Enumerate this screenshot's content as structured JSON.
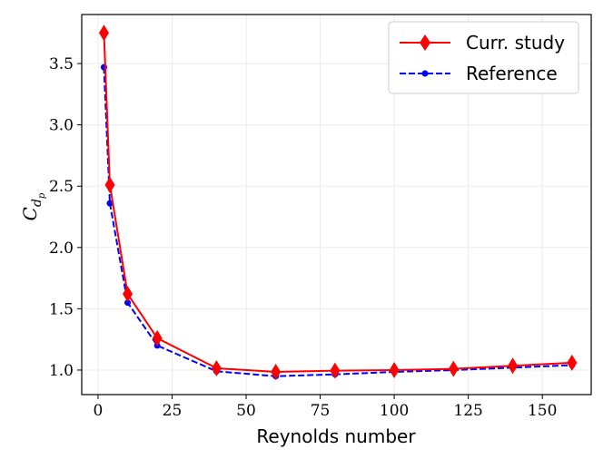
{
  "chart_data": {
    "type": "line",
    "title": "",
    "xlabel": "Reynolds number",
    "ylabel": "C_{d_p}",
    "ylabel_main": "C",
    "ylabel_sub": "d",
    "ylabel_subsub": "p",
    "xlim": [
      -5.5,
      166.5
    ],
    "ylim": [
      0.8,
      3.9
    ],
    "xticks": [
      0,
      25,
      50,
      75,
      100,
      125,
      150
    ],
    "xtick_labels": [
      "0",
      "25",
      "50",
      "75",
      "100",
      "125",
      "150"
    ],
    "yticks": [
      1.0,
      1.5,
      2.0,
      2.5,
      3.0,
      3.5
    ],
    "ytick_labels": [
      "1.0",
      "1.5",
      "2.0",
      "2.5",
      "3.0",
      "3.5"
    ],
    "grid": true,
    "legend_position": "top-right",
    "x": [
      2,
      4,
      10,
      20,
      40,
      60,
      80,
      100,
      120,
      140,
      160
    ],
    "series": [
      {
        "name": "Curr. study",
        "color": "#ff0000",
        "marker": "diamond",
        "linestyle": "solid",
        "values": [
          3.75,
          2.51,
          1.62,
          1.26,
          1.015,
          0.985,
          0.995,
          1.0,
          1.01,
          1.035,
          1.06
        ]
      },
      {
        "name": "Reference",
        "color": "#0000ff",
        "marker": "circle",
        "linestyle": "dashed",
        "values": [
          3.47,
          2.36,
          1.55,
          1.2,
          0.99,
          0.95,
          0.965,
          0.985,
          1.0,
          1.02,
          1.04
        ]
      }
    ]
  }
}
